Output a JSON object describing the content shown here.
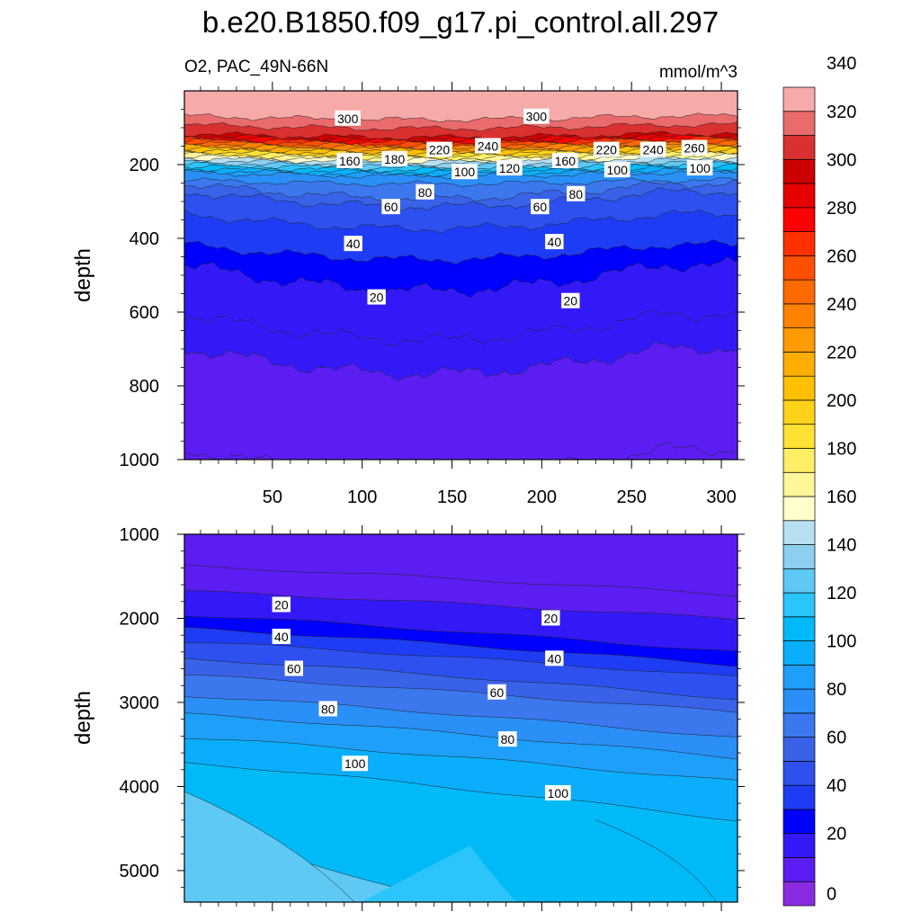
{
  "chart_data": {
    "type": "contour",
    "title": "b.e20.B1850.f09_g17.pi_control.all.297",
    "subtitle_left": "O2, PAC_49N-66N",
    "units": "mmol/m^3",
    "x_ticks": [
      50,
      100,
      150,
      200,
      250,
      300
    ],
    "colorbar": {
      "labels": [
        0,
        20,
        40,
        60,
        80,
        100,
        120,
        140,
        160,
        180,
        200,
        220,
        240,
        260,
        280,
        300,
        320,
        340
      ],
      "colors": [
        "#8a2be2",
        "#5b1df2",
        "#3419f8",
        "#0000ff",
        "#1f3cf5",
        "#2d50ee",
        "#3a62e8",
        "#3b78ee",
        "#2a8ff6",
        "#1e9ffa",
        "#0aaefc",
        "#00baf8",
        "#2bc4fb",
        "#5ec9f5",
        "#8ccfee",
        "#b7e0f3",
        "#ffffcc",
        "#fff599",
        "#ffee66",
        "#ffe233",
        "#ffd21a",
        "#ffc000",
        "#ffae00",
        "#ff9a00",
        "#ff8200",
        "#ff6a00",
        "#ff4f00",
        "#ff3000",
        "#ff0000",
        "#e60000",
        "#cc0000",
        "#d93030",
        "#e96b6b",
        "#f6aaaa"
      ]
    },
    "panels": [
      {
        "name": "upper",
        "ylabel": "depth",
        "ylim": [
          1000,
          0
        ],
        "y_ticks": [
          200,
          400,
          600,
          800,
          1000
        ],
        "xlim": [
          1,
          309
        ],
        "contour_profile": [
          [
            0,
            330
          ],
          [
            60,
            325
          ],
          [
            120,
            300
          ],
          [
            180,
            160
          ],
          [
            225,
            80
          ],
          [
            300,
            45
          ],
          [
            400,
            35
          ],
          [
            500,
            20
          ],
          [
            600,
            12
          ],
          [
            700,
            6
          ],
          [
            800,
            2
          ],
          [
            1000,
            1
          ]
        ],
        "contour_labels": [
          {
            "text": "300",
            "x": 92,
            "depth": 75
          },
          {
            "text": "300",
            "x": 197,
            "depth": 70
          },
          {
            "text": "160",
            "x": 93,
            "depth": 190
          },
          {
            "text": "180",
            "x": 118,
            "depth": 185
          },
          {
            "text": "220",
            "x": 143,
            "depth": 160
          },
          {
            "text": "240",
            "x": 170,
            "depth": 150
          },
          {
            "text": "120",
            "x": 182,
            "depth": 210
          },
          {
            "text": "100",
            "x": 157,
            "depth": 220
          },
          {
            "text": "80",
            "x": 135,
            "depth": 275
          },
          {
            "text": "60",
            "x": 116,
            "depth": 315
          },
          {
            "text": "60",
            "x": 199,
            "depth": 315
          },
          {
            "text": "80",
            "x": 219,
            "depth": 280
          },
          {
            "text": "160",
            "x": 213,
            "depth": 190
          },
          {
            "text": "220",
            "x": 236,
            "depth": 160
          },
          {
            "text": "240",
            "x": 262,
            "depth": 160
          },
          {
            "text": "260",
            "x": 285,
            "depth": 155
          },
          {
            "text": "100",
            "x": 242,
            "depth": 215
          },
          {
            "text": "100",
            "x": 288,
            "depth": 210
          },
          {
            "text": "40",
            "x": 95,
            "depth": 415
          },
          {
            "text": "40",
            "x": 207,
            "depth": 410
          },
          {
            "text": "20",
            "x": 108,
            "depth": 560
          },
          {
            "text": "20",
            "x": 216,
            "depth": 570
          }
        ]
      },
      {
        "name": "lower",
        "ylabel": "depth",
        "ylim": [
          1000,
          5375
        ],
        "y_ticks": [
          1000,
          2000,
          3000,
          4000,
          5000
        ],
        "xlim": [
          1,
          309
        ],
        "contour_labels": [
          {
            "text": "20",
            "x": 55,
            "depth": 1840
          },
          {
            "text": "20",
            "x": 205,
            "depth": 2000
          },
          {
            "text": "40",
            "x": 55,
            "depth": 2220
          },
          {
            "text": "40",
            "x": 207,
            "depth": 2480
          },
          {
            "text": "60",
            "x": 62,
            "depth": 2600
          },
          {
            "text": "60",
            "x": 175,
            "depth": 2880
          },
          {
            "text": "80",
            "x": 81,
            "depth": 3080
          },
          {
            "text": "80",
            "x": 181,
            "depth": 3440
          },
          {
            "text": "100",
            "x": 96,
            "depth": 3730
          },
          {
            "text": "100",
            "x": 209,
            "depth": 4080
          }
        ]
      }
    ]
  }
}
